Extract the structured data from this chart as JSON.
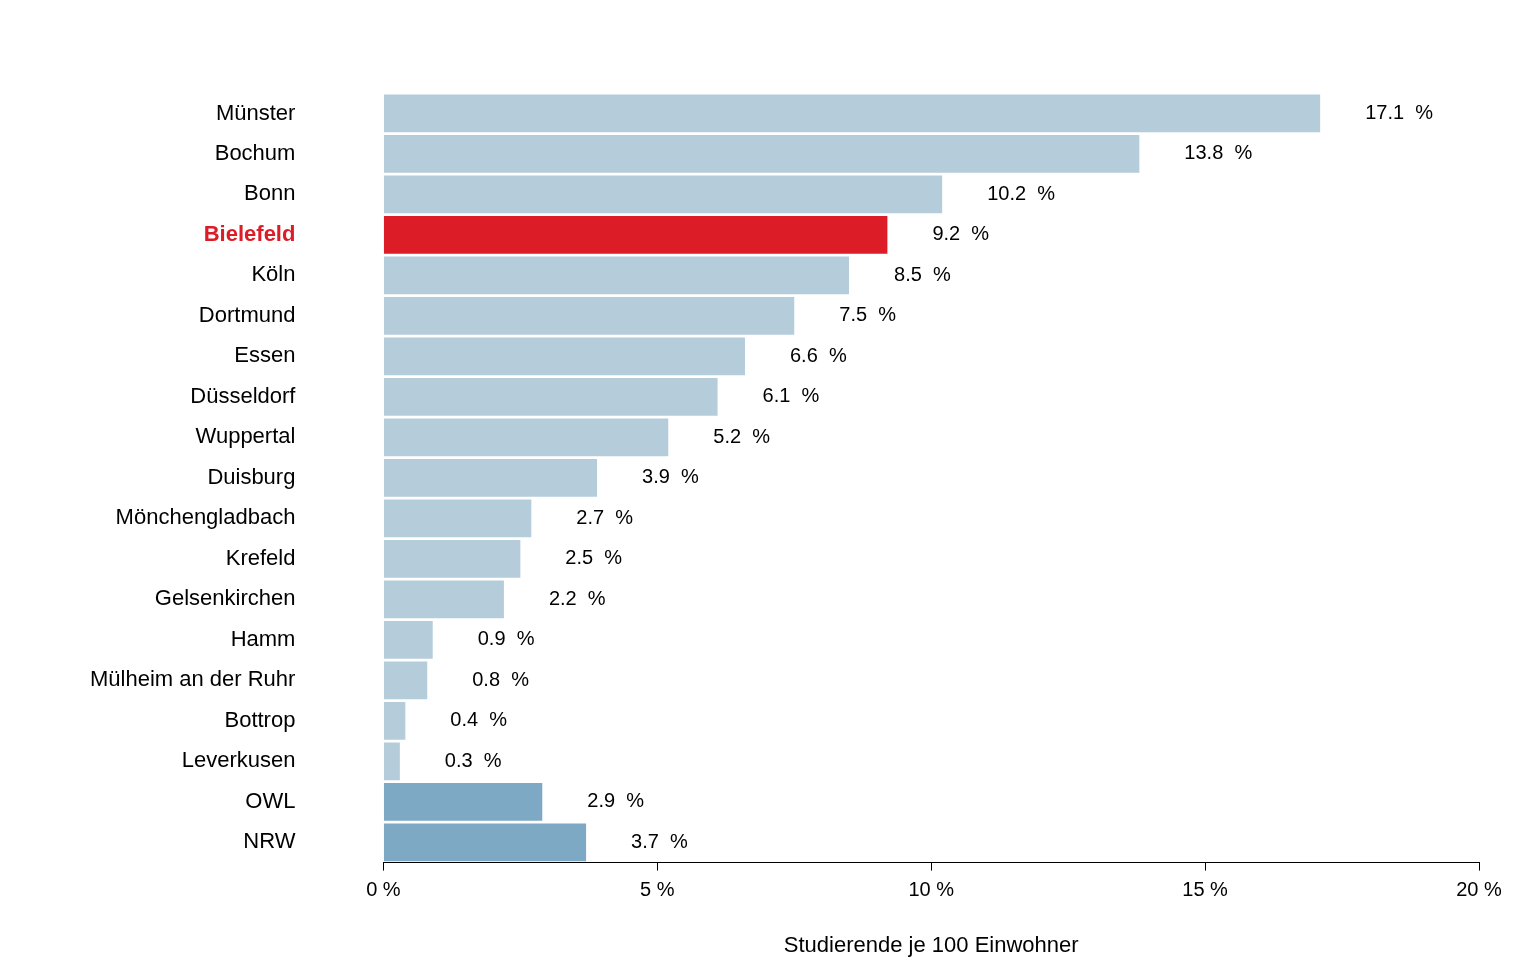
{
  "chart_data": {
    "type": "bar",
    "orientation": "horizontal",
    "xlabel": "Studierende je 100 Einwohner",
    "categories": [
      "Münster",
      "Bochum",
      "Bonn",
      "Bielefeld",
      "Köln",
      "Dortmund",
      "Essen",
      "Düsseldorf",
      "Wuppertal",
      "Duisburg",
      "Mönchengladbach",
      "Krefeld",
      "Gelsenkirchen",
      "Hamm",
      "Mülheim an der Ruhr",
      "Bottrop",
      "Leverkusen",
      "OWL",
      "NRW"
    ],
    "values": [
      17.1,
      13.8,
      10.2,
      9.2,
      8.5,
      7.5,
      6.6,
      6.1,
      5.2,
      3.9,
      2.7,
      2.5,
      2.2,
      0.9,
      0.8,
      0.4,
      0.3,
      2.9,
      3.7
    ],
    "value_labels": [
      "17.1  %",
      "13.8  %",
      "10.2  %",
      "9.2  %",
      "8.5  %",
      "7.5  %",
      "6.6  %",
      "6.1  %",
      "5.2  %",
      "3.9  %",
      "2.7  %",
      "2.5  %",
      "2.2  %",
      "0.9  %",
      "0.8  %",
      "0.4  %",
      "0.3  %",
      "2.9  %",
      "3.7  %"
    ],
    "colors": [
      "#b5cddb",
      "#b5cddb",
      "#b5cddb",
      "#dc1c26",
      "#b5cddb",
      "#b5cddb",
      "#b5cddb",
      "#b5cddb",
      "#b5cddb",
      "#b5cddb",
      "#b5cddb",
      "#b5cddb",
      "#b5cddb",
      "#b5cddb",
      "#b5cddb",
      "#b5cddb",
      "#b5cddb",
      "#7ea9c4",
      "#7ea9c4"
    ],
    "xlim": [
      0,
      20
    ],
    "xticks": [
      {
        "value": 0,
        "label": "0 %"
      },
      {
        "value": 5,
        "label": "5 %"
      },
      {
        "value": 10,
        "label": "10 %"
      },
      {
        "value": 15,
        "label": "15 %"
      },
      {
        "value": 20,
        "label": "20 %"
      }
    ],
    "grid": false,
    "legend": false
  }
}
